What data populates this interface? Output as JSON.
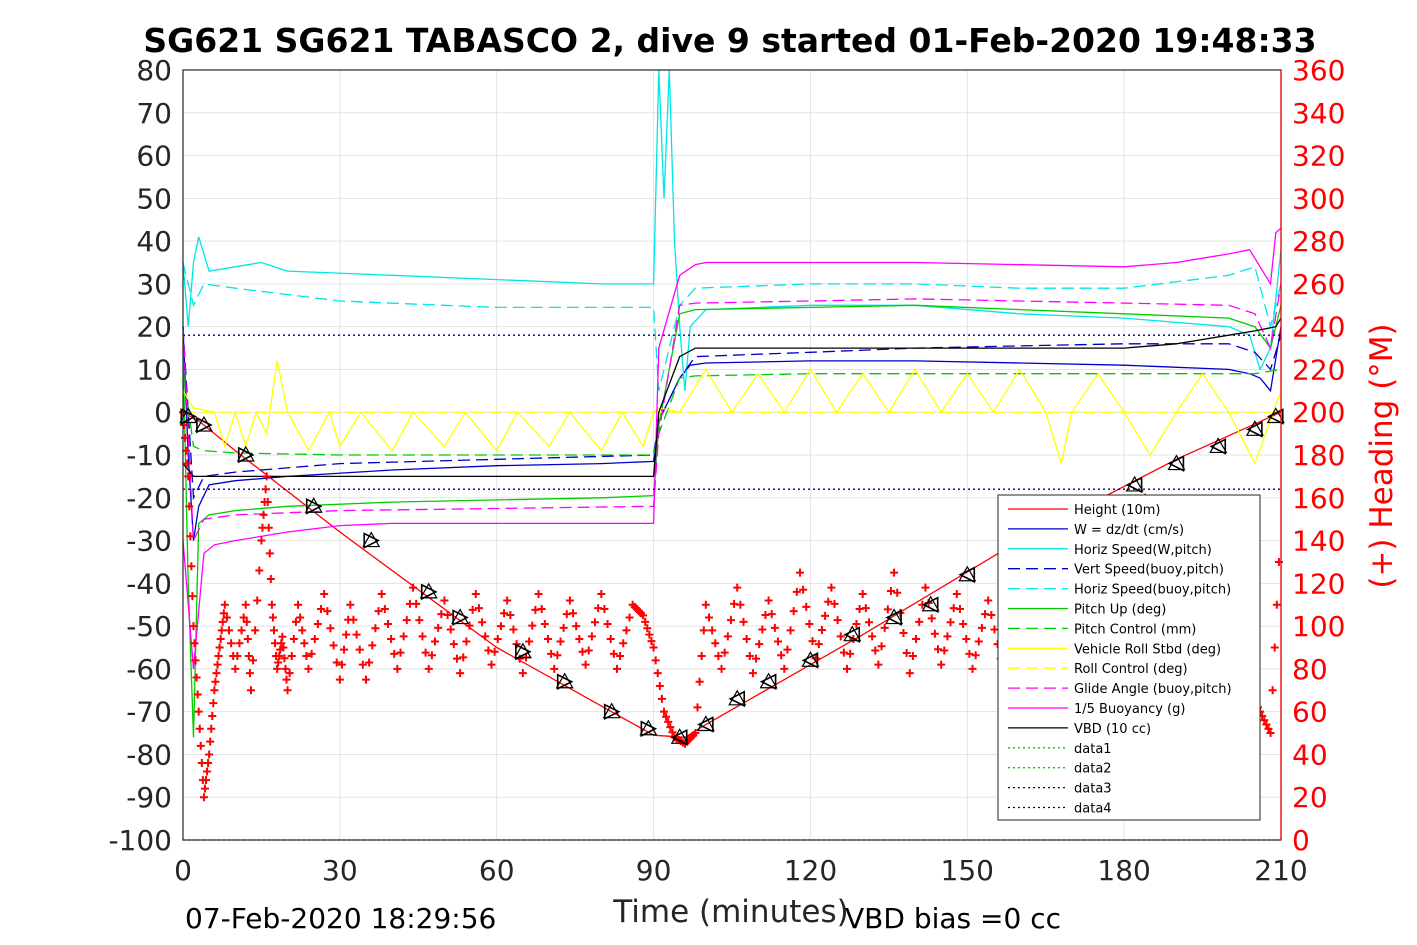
{
  "chart_data": {
    "type": "line",
    "title": "SG621 SG621 TABASCO 2, dive 9 started 01-Feb-2020 19:48:33",
    "xlabel": "Time (minutes)",
    "ylabel": "",
    "y2label": "(+) Heading (°M)",
    "xlim": [
      0,
      210
    ],
    "ylim": [
      -100,
      80
    ],
    "y2lim": [
      0,
      360
    ],
    "xticks": [
      "0",
      "30",
      "60",
      "90",
      "120",
      "150",
      "180",
      "210"
    ],
    "yticks": [
      "80",
      "70",
      "60",
      "50",
      "40",
      "30",
      "20",
      "10",
      "0",
      "-10",
      "-20",
      "-30",
      "-40",
      "-50",
      "-60",
      "-70",
      "-80",
      "-90",
      "-100"
    ],
    "y2ticks": [
      "360",
      "340",
      "320",
      "300",
      "280",
      "260",
      "240",
      "220",
      "200",
      "180",
      "160",
      "140",
      "120",
      "100",
      "80",
      "60",
      "40",
      "20",
      "0"
    ],
    "grid": true,
    "legend_position": "lower-right",
    "footer_left": "07-Feb-2020 18:29:56",
    "footer_right": "VBD bias =0 cc",
    "series": [
      {
        "name": "Height (10m)",
        "color": "#ff0000",
        "style": "solid",
        "x": [
          0,
          3,
          10,
          30,
          60,
          90,
          96,
          100,
          130,
          160,
          190,
          210
        ],
        "y": [
          0,
          -2,
          -9,
          -28,
          -55,
          -75.5,
          -76,
          -73,
          -52,
          -30,
          -11,
          0
        ]
      },
      {
        "name": "W = dz/dt (cm/s)",
        "color": "#0000cc",
        "style": "solid",
        "x": [
          0,
          1,
          2,
          3,
          5,
          10,
          20,
          40,
          60,
          80,
          90,
          91,
          93,
          95,
          97,
          100,
          120,
          140,
          160,
          180,
          200,
          204,
          206,
          208,
          210
        ],
        "y": [
          20,
          -10,
          -30,
          -22,
          -17,
          -16,
          -15,
          -13.5,
          -12.5,
          -12,
          -11.5,
          -2,
          3,
          8,
          11,
          11.5,
          12,
          12,
          11.5,
          11,
          10,
          9,
          8,
          5,
          20
        ]
      },
      {
        "name": "Horiz Speed(W,pitch)",
        "color": "#00e5e5",
        "style": "solid",
        "x": [
          0,
          1,
          2,
          3,
          5,
          10,
          15,
          20,
          40,
          60,
          80,
          90,
          91,
          92,
          93,
          94,
          95,
          96,
          97,
          100,
          120,
          140,
          160,
          180,
          200,
          204,
          206,
          208,
          210
        ],
        "y": [
          35,
          20,
          35,
          41,
          33,
          34,
          35,
          33,
          32,
          31,
          30,
          30,
          80,
          50,
          80,
          40,
          20,
          5,
          20,
          24,
          25,
          25,
          23,
          22,
          20,
          18,
          10,
          15,
          38
        ]
      },
      {
        "name": "Vert Speed(buoy,pitch)",
        "color": "#0000cc",
        "style": "dashed",
        "x": [
          0,
          2,
          4,
          10,
          30,
          60,
          90,
          91,
          95,
          98,
          120,
          140,
          160,
          180,
          200,
          205,
          208,
          210
        ],
        "y": [
          20,
          -20,
          -15,
          -14,
          -12,
          -11,
          -10,
          -2,
          8,
          13,
          14,
          15,
          15.5,
          16,
          16,
          14,
          10,
          18
        ]
      },
      {
        "name": "Horiz Speed(buoy,pitch)",
        "color": "#00e5e5",
        "style": "dashed",
        "x": [
          0,
          2,
          4,
          10,
          30,
          50,
          60,
          90,
          91,
          95,
          98,
          120,
          140,
          160,
          180,
          200,
          205,
          208,
          210
        ],
        "y": [
          35,
          25,
          30,
          29,
          26,
          25,
          24.5,
          24.5,
          5,
          25,
          29,
          30,
          30,
          29,
          29,
          32,
          34,
          20,
          30
        ]
      },
      {
        "name": "Pitch Up (deg)",
        "color": "#00cc00",
        "style": "solid",
        "x": [
          0,
          1,
          2,
          3,
          5,
          10,
          20,
          40,
          60,
          80,
          90,
          91,
          95,
          98,
          120,
          140,
          160,
          180,
          200,
          205,
          208,
          210
        ],
        "y": [
          15,
          -40,
          -76,
          -26,
          -24,
          -23,
          -22,
          -21,
          -20.5,
          -20,
          -19.5,
          -3,
          23,
          24,
          24.5,
          25,
          24,
          23,
          22,
          20,
          15,
          25
        ]
      },
      {
        "name": "Pitch Control (mm)",
        "color": "#00cc00",
        "style": "dashed",
        "x": [
          0,
          2,
          4,
          10,
          30,
          60,
          90,
          91,
          95,
          98,
          120,
          140,
          160,
          180,
          200,
          205,
          210
        ],
        "y": [
          10,
          -8,
          -9,
          -9.5,
          -10,
          -10,
          -10,
          -5,
          8,
          8.5,
          9,
          9,
          9,
          9,
          9,
          9,
          10
        ]
      },
      {
        "name": "Vehicle Roll Stbd (deg)",
        "color": "#ffff00",
        "style": "solid",
        "x": [
          0,
          2,
          6,
          8,
          10,
          12,
          14,
          16,
          18,
          20,
          24,
          28,
          30,
          34,
          40,
          44,
          50,
          54,
          60,
          64,
          70,
          74,
          80,
          84,
          88,
          90,
          91,
          95,
          100,
          105,
          110,
          115,
          120,
          125,
          130,
          135,
          140,
          145,
          150,
          155,
          160,
          165,
          168,
          170,
          175,
          180,
          185,
          190,
          195,
          200,
          205,
          210
        ],
        "y": [
          5,
          1,
          0,
          -8,
          0,
          -8,
          0,
          -5,
          12,
          0,
          -9,
          0,
          -8,
          0,
          -9,
          0,
          -8,
          0,
          -9,
          0,
          -8,
          0,
          -9,
          0,
          -8,
          0,
          1,
          0,
          10,
          0,
          9,
          0,
          10,
          0,
          9,
          0,
          10,
          0,
          9,
          0,
          10,
          0,
          -12,
          0,
          9,
          0,
          -10,
          0,
          9,
          0,
          -12,
          5
        ]
      },
      {
        "name": "Roll Control (deg)",
        "color": "#ffff00",
        "style": "dashed",
        "x": [
          0,
          210
        ],
        "y": [
          0,
          0
        ]
      },
      {
        "name": "Glide Angle (buoy,pitch)",
        "color": "#ff00ff",
        "style": "dashed",
        "x": [
          0,
          2,
          4,
          10,
          30,
          60,
          90,
          91,
          95,
          98,
          120,
          140,
          160,
          180,
          200,
          205,
          208,
          210
        ],
        "y": [
          20,
          -30,
          -25,
          -24,
          -23,
          -22.5,
          -22,
          -5,
          25,
          25.5,
          26,
          26.5,
          26,
          25.5,
          25,
          23,
          15,
          30
        ]
      },
      {
        "name": "1/5 Buoyancy (g)",
        "color": "#ff00ff",
        "style": "solid",
        "x": [
          0,
          2,
          4,
          6,
          10,
          20,
          30,
          40,
          60,
          90,
          91,
          95,
          98,
          100,
          140,
          180,
          190,
          195,
          200,
          204,
          206,
          208,
          209,
          210
        ],
        "y": [
          -30,
          -60,
          -33,
          -31,
          -30,
          -28,
          -26.5,
          -26,
          -26,
          -26,
          15,
          32,
          34.5,
          35,
          35,
          34,
          35,
          36,
          37,
          38,
          34,
          30,
          42,
          43
        ]
      },
      {
        "name": "VBD (10 cc)",
        "color": "#000000",
        "style": "solid",
        "x": [
          0,
          2,
          4,
          90,
          91,
          95,
          98,
          100,
          180,
          190,
          195,
          200,
          205,
          209,
          210
        ],
        "y": [
          -12,
          -15,
          -15,
          -15,
          0,
          13,
          15,
          15,
          15,
          16,
          17,
          18,
          19,
          20,
          22
        ]
      },
      {
        "name": "data1",
        "color": "#00cc00",
        "style": "dotted",
        "x": [
          0,
          210
        ],
        "y": [
          -100,
          -100
        ]
      },
      {
        "name": "data2",
        "color": "#00cc00",
        "style": "dotted",
        "x": [
          0,
          210
        ],
        "y": [
          -100,
          -100
        ]
      },
      {
        "name": "data3",
        "color": "#000080",
        "style": "dotted",
        "x": [
          0,
          210
        ],
        "y": [
          18,
          18
        ]
      },
      {
        "name": "data4",
        "color": "#000080",
        "style": "dotted",
        "x": [
          0,
          210
        ],
        "y": [
          -18,
          -18
        ]
      }
    ],
    "heading": {
      "color": "#ff0000",
      "x": [
        0,
        1,
        2,
        3,
        4,
        5,
        6,
        7,
        8,
        10,
        12,
        13,
        15,
        16,
        17,
        18,
        19,
        20,
        22,
        24,
        27,
        30,
        32,
        35,
        38,
        41,
        44,
        47,
        50,
        53,
        56,
        59,
        62,
        65,
        68,
        71,
        74,
        77,
        80,
        83,
        86,
        88,
        90,
        92,
        94,
        96,
        98,
        100,
        103,
        106,
        109,
        112,
        115,
        118,
        121,
        124,
        127,
        130,
        133,
        136,
        139,
        142,
        145,
        148,
        151,
        154,
        157,
        160,
        163,
        166,
        169,
        172,
        175,
        178,
        181,
        184,
        187,
        190,
        193,
        196,
        199,
        202,
        204,
        206,
        208,
        210
      ],
      "y": [
        200,
        170,
        100,
        60,
        20,
        40,
        70,
        90,
        110,
        80,
        110,
        70,
        140,
        170,
        110,
        80,
        95,
        70,
        110,
        80,
        115,
        75,
        110,
        75,
        115,
        80,
        118,
        80,
        112,
        78,
        115,
        82,
        112,
        78,
        115,
        80,
        112,
        82,
        115,
        80,
        110,
        105,
        90,
        60,
        48,
        45,
        50,
        110,
        80,
        118,
        78,
        112,
        80,
        125,
        85,
        118,
        80,
        115,
        82,
        125,
        78,
        118,
        82,
        115,
        80,
        112,
        78,
        118,
        85,
        110,
        80,
        115,
        82,
        130,
        90,
        160,
        120,
        115,
        100,
        110,
        105,
        90,
        70,
        60,
        50,
        150
      ]
    },
    "markers": {
      "x": [
        1,
        4,
        12,
        25,
        36,
        47,
        53,
        65,
        73,
        82,
        89,
        95,
        100,
        106,
        112,
        120,
        128,
        136,
        143,
        150,
        158,
        166,
        174,
        182,
        190,
        198,
        205,
        209
      ],
      "y": [
        -1,
        -3,
        -10,
        -22,
        -30,
        -42,
        -48,
        -56,
        -63,
        -70,
        -74,
        -76,
        -73,
        -67,
        -63,
        -58,
        -52,
        -48,
        -45,
        -38,
        -32,
        -27,
        -22,
        -17,
        -12,
        -8,
        -4,
        -1
      ]
    }
  }
}
